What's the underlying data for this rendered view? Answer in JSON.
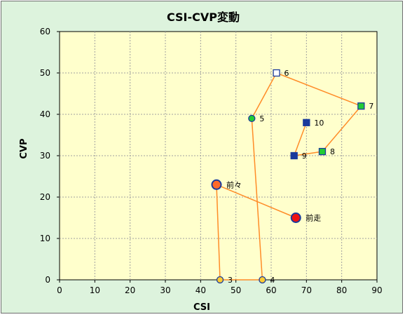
{
  "chart_data": {
    "type": "scatter",
    "title": "CSI-CVP変動",
    "xlabel": "CSI",
    "ylabel": "CVP",
    "xlim": [
      0,
      90
    ],
    "ylim": [
      0,
      60
    ],
    "xticks": [
      "0",
      "10",
      "20",
      "30",
      "40",
      "50",
      "60",
      "70",
      "80",
      "90"
    ],
    "yticks": [
      "0",
      "10",
      "20",
      "30",
      "40",
      "50",
      "60"
    ],
    "grid": true,
    "colors": {
      "plot_bg": "#ffffcc",
      "chart_bg": "#ddf3dd",
      "grid": "#a0a0a0",
      "line": "#ff8c28",
      "blue": "#1a3a9c",
      "green": "#22cc33",
      "orange": "#ff6a2a",
      "yellow": "#ffcc33",
      "red": "#ee1111"
    },
    "path_order": [
      "3",
      "4",
      "5",
      "6",
      "7",
      "8",
      "9",
      "10"
    ],
    "points": [
      {
        "label": "3",
        "x": 45.5,
        "y": 0,
        "marker": "circle",
        "size": "small",
        "fill": "yellow"
      },
      {
        "label": "4",
        "x": 57.5,
        "y": 0,
        "marker": "circle",
        "size": "small",
        "fill": "yellow"
      },
      {
        "label": "5",
        "x": 54.5,
        "y": 39,
        "marker": "circle",
        "size": "small",
        "fill": "green"
      },
      {
        "label": "6",
        "x": 61.5,
        "y": 50,
        "marker": "square",
        "size": "small",
        "fill": "white"
      },
      {
        "label": "7",
        "x": 85.5,
        "y": 42,
        "marker": "square",
        "size": "small",
        "fill": "green"
      },
      {
        "label": "8",
        "x": 74.5,
        "y": 31,
        "marker": "square",
        "size": "small",
        "fill": "green"
      },
      {
        "label": "9",
        "x": 66.5,
        "y": 30,
        "marker": "square",
        "size": "small",
        "fill": "blue"
      },
      {
        "label": "10",
        "x": 70,
        "y": 38,
        "marker": "square",
        "size": "small",
        "fill": "blue"
      },
      {
        "label": "前々",
        "x": 44.5,
        "y": 23,
        "marker": "circle",
        "size": "large",
        "fill": "orange"
      },
      {
        "label": "前走",
        "x": 67,
        "y": 15,
        "marker": "circle",
        "size": "large",
        "fill": "red"
      }
    ],
    "extra_segments": [
      [
        "前々",
        "3"
      ],
      [
        "前々",
        "前走"
      ]
    ]
  }
}
